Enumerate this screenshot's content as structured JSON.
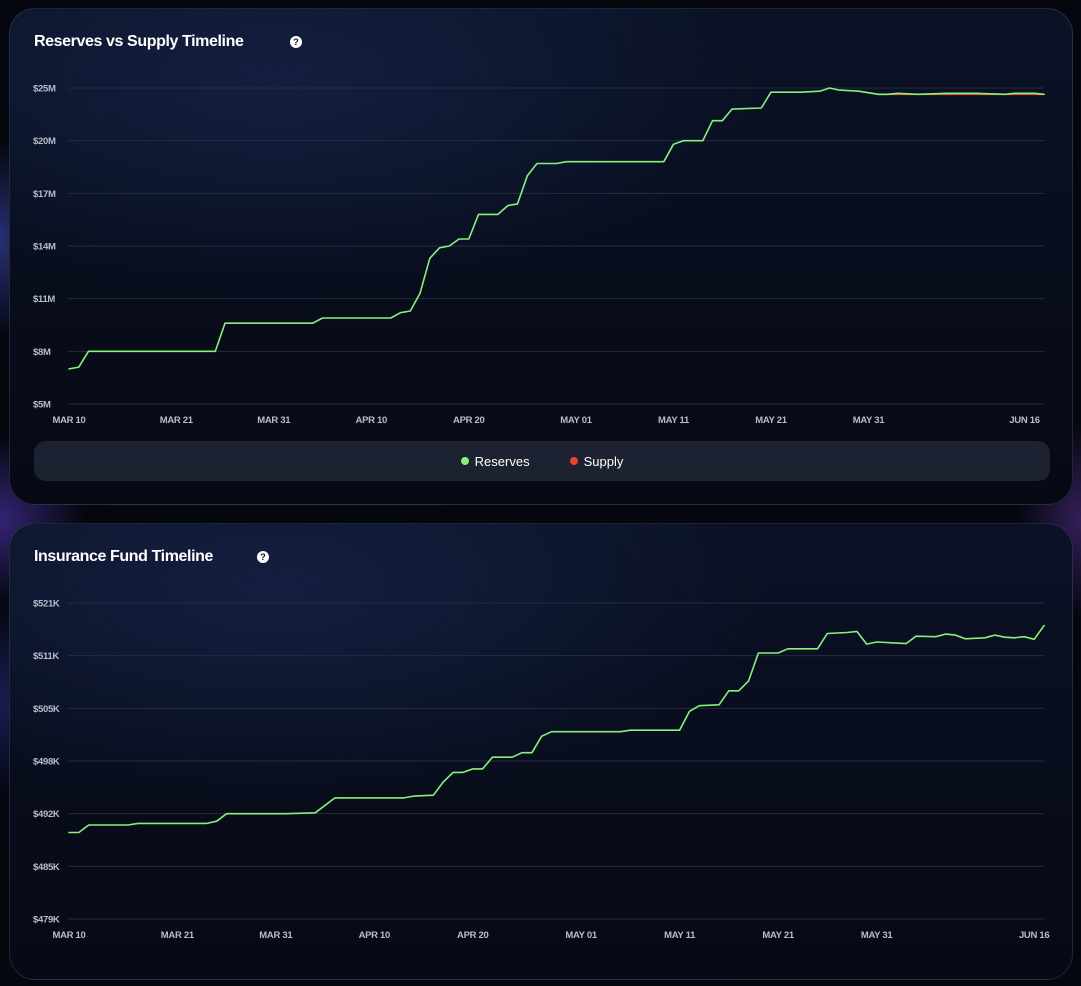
{
  "colors": {
    "reserves": "#86f27c",
    "supply": "#e8442c",
    "insurance": "#86f27c",
    "grid": "#232c40"
  },
  "charts": {
    "reserves": {
      "title": "Reserves vs Supply Timeline",
      "help_icon": "question-icon",
      "legend": [
        {
          "name": "Reserves",
          "color": "#86f27c"
        },
        {
          "name": "Supply",
          "color": "#e8442c"
        }
      ]
    },
    "insurance": {
      "title": "Insurance Fund Timeline",
      "help_icon": "question-icon"
    }
  },
  "chart_data": [
    {
      "type": "line",
      "title": "Reserves vs Supply Timeline",
      "grid": true,
      "legend_position": "bottom",
      "x_ticks": [
        "MAR 10",
        "MAR 21",
        "MAR 31",
        "APR 10",
        "APR 20",
        "MAY 01",
        "MAY 11",
        "MAY 21",
        "MAY 31",
        "JUN 16"
      ],
      "y_ticks": [
        "$25M",
        "$20M",
        "$17M",
        "$14M",
        "$11M",
        "$8M",
        "$5M"
      ],
      "y_scale": "tick-spaced",
      "series": [
        {
          "name": "Reserves",
          "color": "#86f27c",
          "points": [
            [
              "2024-03-10",
              7.0
            ],
            [
              "2024-03-11",
              7.1
            ],
            [
              "2024-03-12",
              8.0
            ],
            [
              "2024-03-13",
              8.0
            ],
            [
              "2024-03-20",
              8.0
            ],
            [
              "2024-03-25",
              8.0
            ],
            [
              "2024-03-25",
              8.0
            ],
            [
              "2024-03-26",
              9.6
            ],
            [
              "2024-03-31",
              9.6
            ],
            [
              "2024-04-04",
              9.6
            ],
            [
              "2024-04-05",
              9.9
            ],
            [
              "2024-04-12",
              9.9
            ],
            [
              "2024-04-13",
              10.2
            ],
            [
              "2024-04-14",
              10.3
            ],
            [
              "2024-04-15",
              11.3
            ],
            [
              "2024-04-16",
              13.3
            ],
            [
              "2024-04-17",
              13.9
            ],
            [
              "2024-04-18",
              14.0
            ],
            [
              "2024-04-19",
              14.4
            ],
            [
              "2024-04-20",
              14.4
            ],
            [
              "2024-04-21",
              15.8
            ],
            [
              "2024-04-23",
              15.8
            ],
            [
              "2024-04-24",
              16.3
            ],
            [
              "2024-04-25",
              16.4
            ],
            [
              "2024-04-26",
              18.0
            ],
            [
              "2024-04-27",
              18.7
            ],
            [
              "2024-04-29",
              18.7
            ],
            [
              "2024-04-30",
              18.8
            ],
            [
              "2024-05-05",
              18.8
            ],
            [
              "2024-05-08",
              18.8
            ],
            [
              "2024-05-10",
              18.8
            ],
            [
              "2024-05-11",
              19.8
            ],
            [
              "2024-05-12",
              20.0
            ],
            [
              "2024-05-14",
              20.0
            ],
            [
              "2024-05-15",
              21.9
            ],
            [
              "2024-05-16",
              21.9
            ],
            [
              "2024-05-17",
              23.0
            ],
            [
              "2024-05-20",
              23.1
            ],
            [
              "2024-05-21",
              24.6
            ],
            [
              "2024-05-24",
              24.6
            ],
            [
              "2024-05-26",
              24.7
            ],
            [
              "2024-05-27",
              25.0
            ],
            [
              "2024-05-28",
              24.8
            ],
            [
              "2024-05-30",
              24.7
            ],
            [
              "2024-06-01",
              24.4
            ],
            [
              "2024-06-02",
              24.4
            ],
            [
              "2024-06-03",
              24.5
            ],
            [
              "2024-06-05",
              24.4
            ],
            [
              "2024-06-08",
              24.5
            ],
            [
              "2024-06-11",
              24.5
            ],
            [
              "2024-06-14",
              24.4
            ],
            [
              "2024-06-15",
              24.5
            ],
            [
              "2024-06-17",
              24.5
            ],
            [
              "2024-06-18",
              24.4
            ]
          ]
        },
        {
          "name": "Supply",
          "color": "#e8442c",
          "points": [
            [
              "2024-06-01",
              24.4
            ],
            [
              "2024-06-02",
              24.4
            ],
            [
              "2024-06-03",
              24.4
            ],
            [
              "2024-06-05",
              24.4
            ],
            [
              "2024-06-08",
              24.4
            ],
            [
              "2024-06-11",
              24.4
            ],
            [
              "2024-06-14",
              24.4
            ],
            [
              "2024-06-15",
              24.4
            ],
            [
              "2024-06-17",
              24.4
            ],
            [
              "2024-06-18",
              24.4
            ]
          ]
        }
      ]
    },
    {
      "type": "line",
      "title": "Insurance Fund Timeline",
      "grid": true,
      "x_ticks": [
        "MAR 10",
        "MAR 21",
        "MAR 31",
        "APR 10",
        "APR 20",
        "MAY 01",
        "MAY 11",
        "MAY 21",
        "MAY 31",
        "JUN 16"
      ],
      "y_ticks": [
        "$521K",
        "$511K",
        "$505K",
        "$498K",
        "$492K",
        "$485K",
        "$479K"
      ],
      "y_scale": "tick-spaced",
      "series": [
        {
          "name": "Insurance Fund",
          "color": "#86f27c",
          "points": [
            [
              "2024-03-10",
              489.5
            ],
            [
              "2024-03-11",
              489.5
            ],
            [
              "2024-03-12",
              490.5
            ],
            [
              "2024-03-16",
              490.5
            ],
            [
              "2024-03-17",
              490.7
            ],
            [
              "2024-03-24",
              490.7
            ],
            [
              "2024-03-25",
              491.0
            ],
            [
              "2024-03-26",
              492.0
            ],
            [
              "2024-04-01",
              492.0
            ],
            [
              "2024-04-04",
              492.1
            ],
            [
              "2024-04-06",
              493.8
            ],
            [
              "2024-04-13",
              493.8
            ],
            [
              "2024-04-14",
              494.0
            ],
            [
              "2024-04-16",
              494.1
            ],
            [
              "2024-04-17",
              495.6
            ],
            [
              "2024-04-18",
              496.7
            ],
            [
              "2024-04-19",
              496.7
            ],
            [
              "2024-04-20",
              497.1
            ],
            [
              "2024-04-21",
              497.1
            ],
            [
              "2024-04-22",
              498.5
            ],
            [
              "2024-04-24",
              498.5
            ],
            [
              "2024-04-25",
              499.1
            ],
            [
              "2024-04-26",
              499.1
            ],
            [
              "2024-04-27",
              501.3
            ],
            [
              "2024-04-28",
              501.9
            ],
            [
              "2024-05-02",
              501.9
            ],
            [
              "2024-05-05",
              501.9
            ],
            [
              "2024-05-06",
              502.1
            ],
            [
              "2024-05-10",
              502.1
            ],
            [
              "2024-05-11",
              502.1
            ],
            [
              "2024-05-12",
              504.6
            ],
            [
              "2024-05-13",
              505.3
            ],
            [
              "2024-05-15",
              505.4
            ],
            [
              "2024-05-16",
              507.0
            ],
            [
              "2024-05-17",
              507.0
            ],
            [
              "2024-05-18",
              508.1
            ],
            [
              "2024-05-19",
              511.5
            ],
            [
              "2024-05-21",
              511.5
            ],
            [
              "2024-05-22",
              512.3
            ],
            [
              "2024-05-25",
              512.3
            ],
            [
              "2024-05-26",
              515.2
            ],
            [
              "2024-05-28",
              515.4
            ],
            [
              "2024-05-29",
              515.6
            ],
            [
              "2024-05-30",
              513.2
            ],
            [
              "2024-05-31",
              513.6
            ],
            [
              "2024-06-01",
              513.5
            ],
            [
              "2024-06-03",
              513.3
            ],
            [
              "2024-06-04",
              514.7
            ],
            [
              "2024-06-06",
              514.6
            ],
            [
              "2024-06-07",
              515.1
            ],
            [
              "2024-06-08",
              514.9
            ],
            [
              "2024-06-09",
              514.2
            ],
            [
              "2024-06-11",
              514.4
            ],
            [
              "2024-06-12",
              514.9
            ],
            [
              "2024-06-13",
              514.5
            ],
            [
              "2024-06-14",
              514.4
            ],
            [
              "2024-06-15",
              514.6
            ],
            [
              "2024-06-16",
              514.1
            ],
            [
              "2024-06-17",
              516.7
            ]
          ]
        }
      ]
    }
  ]
}
